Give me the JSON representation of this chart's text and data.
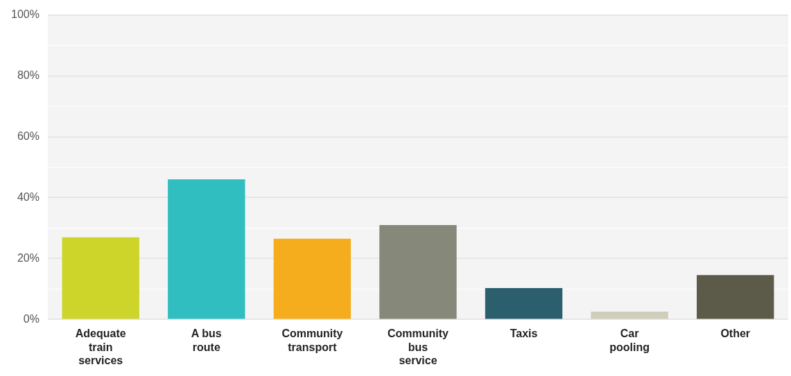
{
  "chart_data": {
    "type": "bar",
    "categories": [
      "Adequate train services",
      "A bus route",
      "Community transport",
      "Community bus service",
      "Taxis",
      "Car pooling",
      "Other"
    ],
    "values": [
      27,
      46,
      26.5,
      31,
      10.3,
      2.6,
      14.6
    ],
    "colors": [
      "#cdd42a",
      "#31bec0",
      "#f5ad1e",
      "#86897a",
      "#2b5f6e",
      "#cfcdbc",
      "#5c5a48"
    ],
    "ylim": [
      0,
      100
    ],
    "yticks": [
      {
        "value": 0,
        "label": "0%"
      },
      {
        "value": 10,
        "label": null
      },
      {
        "value": 20,
        "label": "20%"
      },
      {
        "value": 30,
        "label": null
      },
      {
        "value": 40,
        "label": "40%"
      },
      {
        "value": 50,
        "label": null
      },
      {
        "value": 60,
        "label": "60%"
      },
      {
        "value": 70,
        "label": null
      },
      {
        "value": 80,
        "label": "80%"
      },
      {
        "value": 90,
        "label": null
      },
      {
        "value": 100,
        "label": "100%"
      }
    ],
    "grid": "y",
    "legend": false
  }
}
